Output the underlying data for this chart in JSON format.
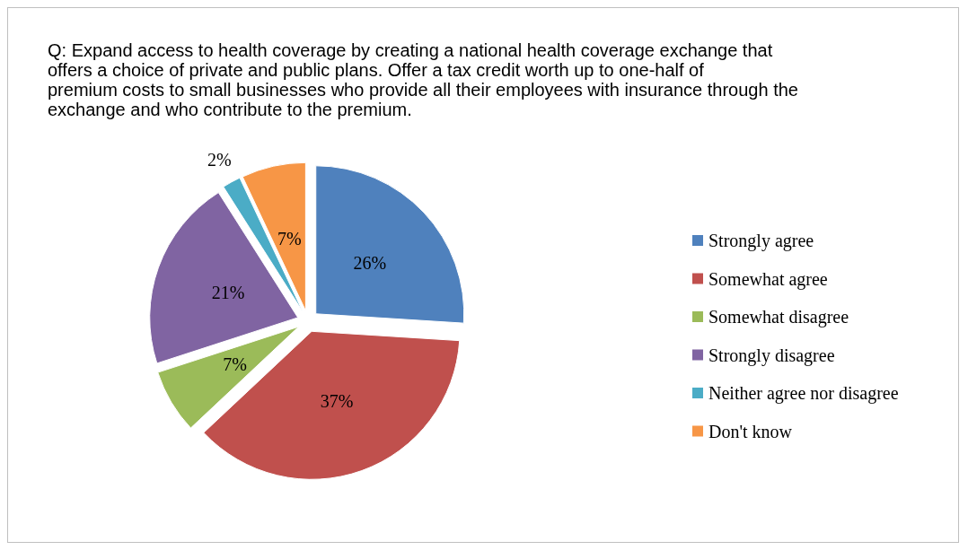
{
  "chart_data": {
    "type": "pie",
    "title": "Q: Expand access to health coverage by creating a national health coverage exchange that offers a choice of private and public plans. Offer a tax credit worth up to one-half of premium costs to small businesses who provide all their employees with insurance through the exchange and who contribute to the premium.",
    "categories": [
      "Strongly agree",
      "Somewhat agree",
      "Somewhat disagree",
      "Strongly disagree",
      "Neither agree nor disagree",
      "Don't know"
    ],
    "values": [
      26,
      37,
      7,
      21,
      2,
      7
    ],
    "colors": [
      "#4f81bd",
      "#c0504d",
      "#9bbb59",
      "#8064a2",
      "#4bacc6",
      "#f79646"
    ],
    "value_labels": [
      "26%",
      "37%",
      "7%",
      "21%",
      "2%",
      "7%"
    ],
    "legend": "right"
  }
}
